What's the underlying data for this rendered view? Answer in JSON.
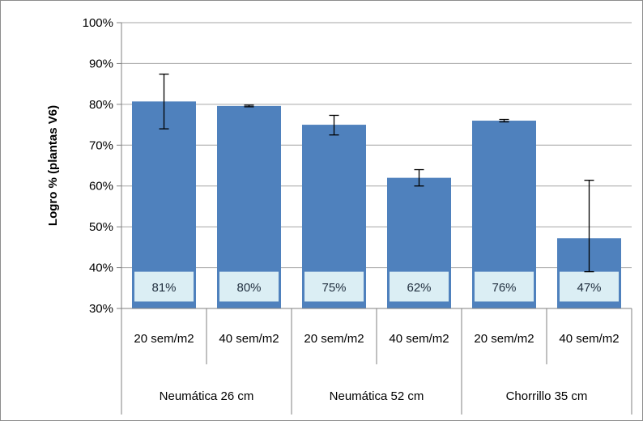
{
  "chart_data": {
    "type": "bar",
    "title": "",
    "ylabel": "Logro % (plantas V6)",
    "xlabel": "",
    "ylim": [
      30,
      100
    ],
    "yticks": [
      "30%",
      "40%",
      "50%",
      "60%",
      "70%",
      "80%",
      "90%",
      "100%"
    ],
    "grid": true,
    "legend": "none",
    "groups": [
      "Neumática 26 cm",
      "Neumática 52 cm",
      "Chorrillo 35 cm"
    ],
    "categories": [
      "20 sem/m2",
      "40 sem/m2",
      "20 sem/m2",
      "40 sem/m2",
      "20 sem/m2",
      "40 sem/m2"
    ],
    "values": [
      80.7,
      79.6,
      75.0,
      62.0,
      76.0,
      47.2
    ],
    "data_labels": [
      "81%",
      "80%",
      "75%",
      "62%",
      "76%",
      "47%"
    ],
    "error_low": [
      74.0,
      79.4,
      72.5,
      60.0,
      75.7,
      39.0
    ],
    "error_high": [
      87.4,
      79.8,
      77.3,
      64.0,
      76.3,
      61.4
    ],
    "colors": {
      "bar": "#4f81bd",
      "label_box": "#dbeef4",
      "grid": "#a6a6a6"
    }
  }
}
